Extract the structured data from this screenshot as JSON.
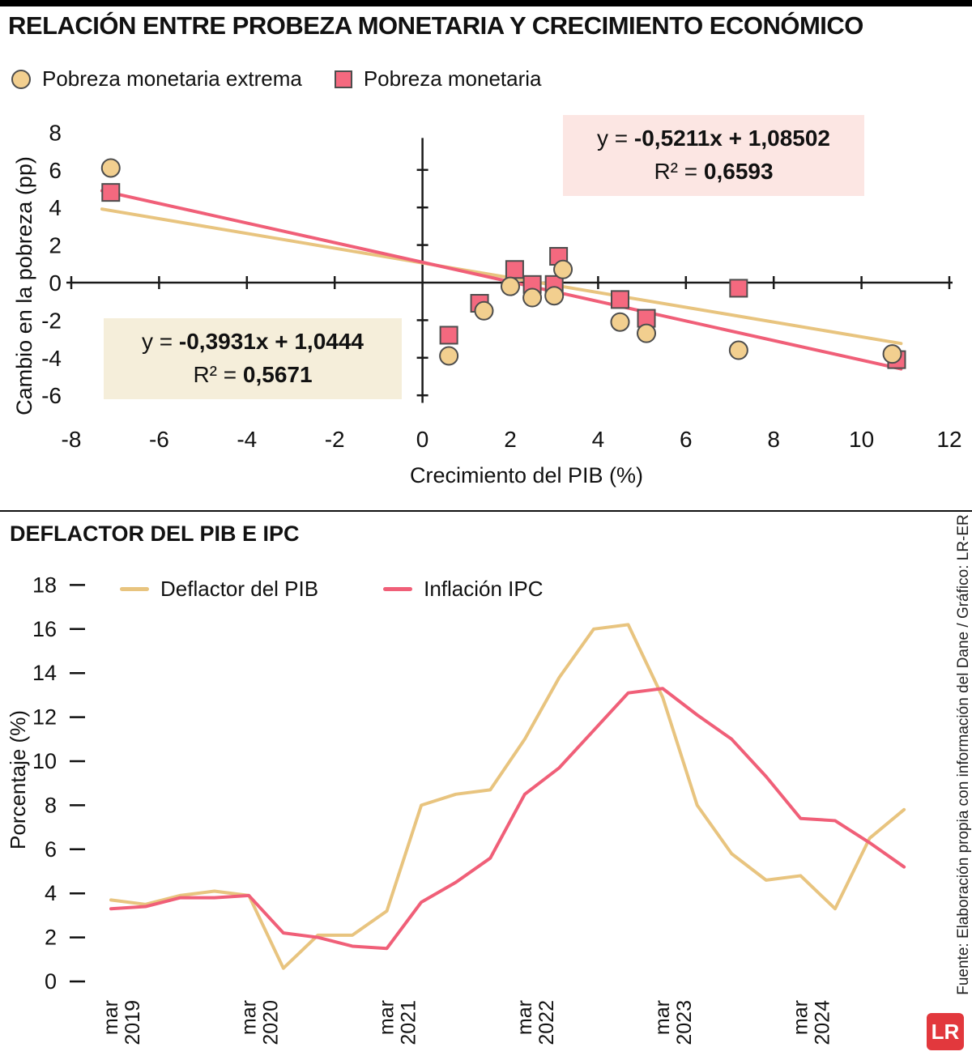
{
  "page": {
    "source_credit": "Fuente: Elaboración propia con información del Dane / Gráfico: LR-ER",
    "logo_text": "LR"
  },
  "colors": {
    "gold_marker": "#f2cf8f",
    "gold_line": "#e8c47f",
    "pink_marker": "#f4697f",
    "pink_line": "#f05f78",
    "marker_stroke": "#4d4d4d",
    "axis": "#1a1a1a",
    "eq_box_pink_bg": "#fce6e3",
    "eq_box_cream_bg": "#f5eeda",
    "logo_red": "#e2383d"
  },
  "chart_data": [
    {
      "type": "scatter",
      "title": "RELACIÓN ENTRE PROBEZA MONETARIA Y CRECIMIENTO ECONÓMICO",
      "xlabel": "Crecimiento del PIB (%)",
      "ylabel": "Cambio en la pobreza (pp)",
      "xlim": [
        -8.6,
        12.3
      ],
      "ylim": [
        -7.2,
        8.6
      ],
      "x_ticks": [
        -8,
        -6,
        -4,
        -2,
        0,
        2,
        4,
        6,
        8,
        10,
        12
      ],
      "y_ticks": [
        8,
        6,
        4,
        2,
        0,
        -2,
        -4,
        -6
      ],
      "grid": false,
      "legend_position": "top-left",
      "series": [
        {
          "name": "Pobreza monetaria extrema",
          "marker": "circle",
          "color": "#f2cf8f",
          "points": [
            [
              -7.1,
              6.1
            ],
            [
              0.6,
              -3.9
            ],
            [
              1.4,
              -1.5
            ],
            [
              2.0,
              -0.2
            ],
            [
              2.5,
              -0.8
            ],
            [
              3.0,
              -0.7
            ],
            [
              3.2,
              0.7
            ],
            [
              4.5,
              -2.1
            ],
            [
              5.1,
              -2.7
            ],
            [
              7.2,
              -3.6
            ],
            [
              10.7,
              -3.8
            ]
          ],
          "trend": {
            "slope": -0.3931,
            "intercept": 1.0444,
            "x_range": [
              -7.3,
              10.9
            ],
            "color": "#e8c47f",
            "eq_prefix": "y = ",
            "eq_formula": "-0,3931x + 1,0444",
            "r2_prefix": "R² = ",
            "r2_value": "0,5671"
          }
        },
        {
          "name": "Pobreza monetaria",
          "marker": "square",
          "color": "#f4697f",
          "points": [
            [
              -7.1,
              4.8
            ],
            [
              0.6,
              -2.8
            ],
            [
              1.3,
              -1.1
            ],
            [
              2.1,
              0.7
            ],
            [
              2.5,
              -0.1
            ],
            [
              3.0,
              -0.1
            ],
            [
              3.1,
              1.4
            ],
            [
              4.5,
              -0.9
            ],
            [
              5.1,
              -1.9
            ],
            [
              7.2,
              -0.3
            ],
            [
              10.8,
              -4.1
            ]
          ],
          "trend": {
            "slope": -0.5211,
            "intercept": 1.08502,
            "x_range": [
              -7.3,
              10.9
            ],
            "color": "#f05f78",
            "eq_prefix": "y = ",
            "eq_formula": "-0,5211x + 1,08502",
            "r2_prefix": "R² = ",
            "r2_value": "0,6593"
          }
        }
      ]
    },
    {
      "type": "line",
      "title": "DEFLACTOR DEL PIB E IPC",
      "xlabel": "",
      "ylabel": "Porcentaje (%)",
      "ylim": [
        0,
        18
      ],
      "y_ticks": [
        0,
        2,
        4,
        6,
        8,
        10,
        12,
        14,
        16,
        18
      ],
      "grid": false,
      "legend_position": "top-left",
      "x_tick_labels": [
        {
          "index": 0,
          "label": "mar 2019"
        },
        {
          "index": 4,
          "label": "mar 2020"
        },
        {
          "index": 8,
          "label": "mar 2021"
        },
        {
          "index": 12,
          "label": "mar 2022"
        },
        {
          "index": 16,
          "label": "mar 2023"
        },
        {
          "index": 20,
          "label": "mar 2024"
        }
      ],
      "x_frequency": "quarterly",
      "series": [
        {
          "name": "Deflactor del PIB",
          "color": "#e8c47f",
          "values": [
            3.7,
            3.5,
            3.9,
            4.1,
            3.9,
            0.6,
            2.1,
            2.1,
            3.2,
            8.0,
            8.5,
            8.7,
            11.0,
            13.8,
            16.0,
            16.2,
            12.9,
            8.0,
            5.8,
            4.6,
            4.8,
            3.3,
            6.5,
            7.8
          ]
        },
        {
          "name": "Inflación IPC",
          "color": "#f05f78",
          "values": [
            3.3,
            3.4,
            3.8,
            3.8,
            3.9,
            2.2,
            2.0,
            1.6,
            1.5,
            3.6,
            4.5,
            5.6,
            8.5,
            9.7,
            11.4,
            13.1,
            13.3,
            12.1,
            11.0,
            9.3,
            7.4,
            7.3,
            6.3,
            5.2
          ]
        }
      ]
    }
  ]
}
